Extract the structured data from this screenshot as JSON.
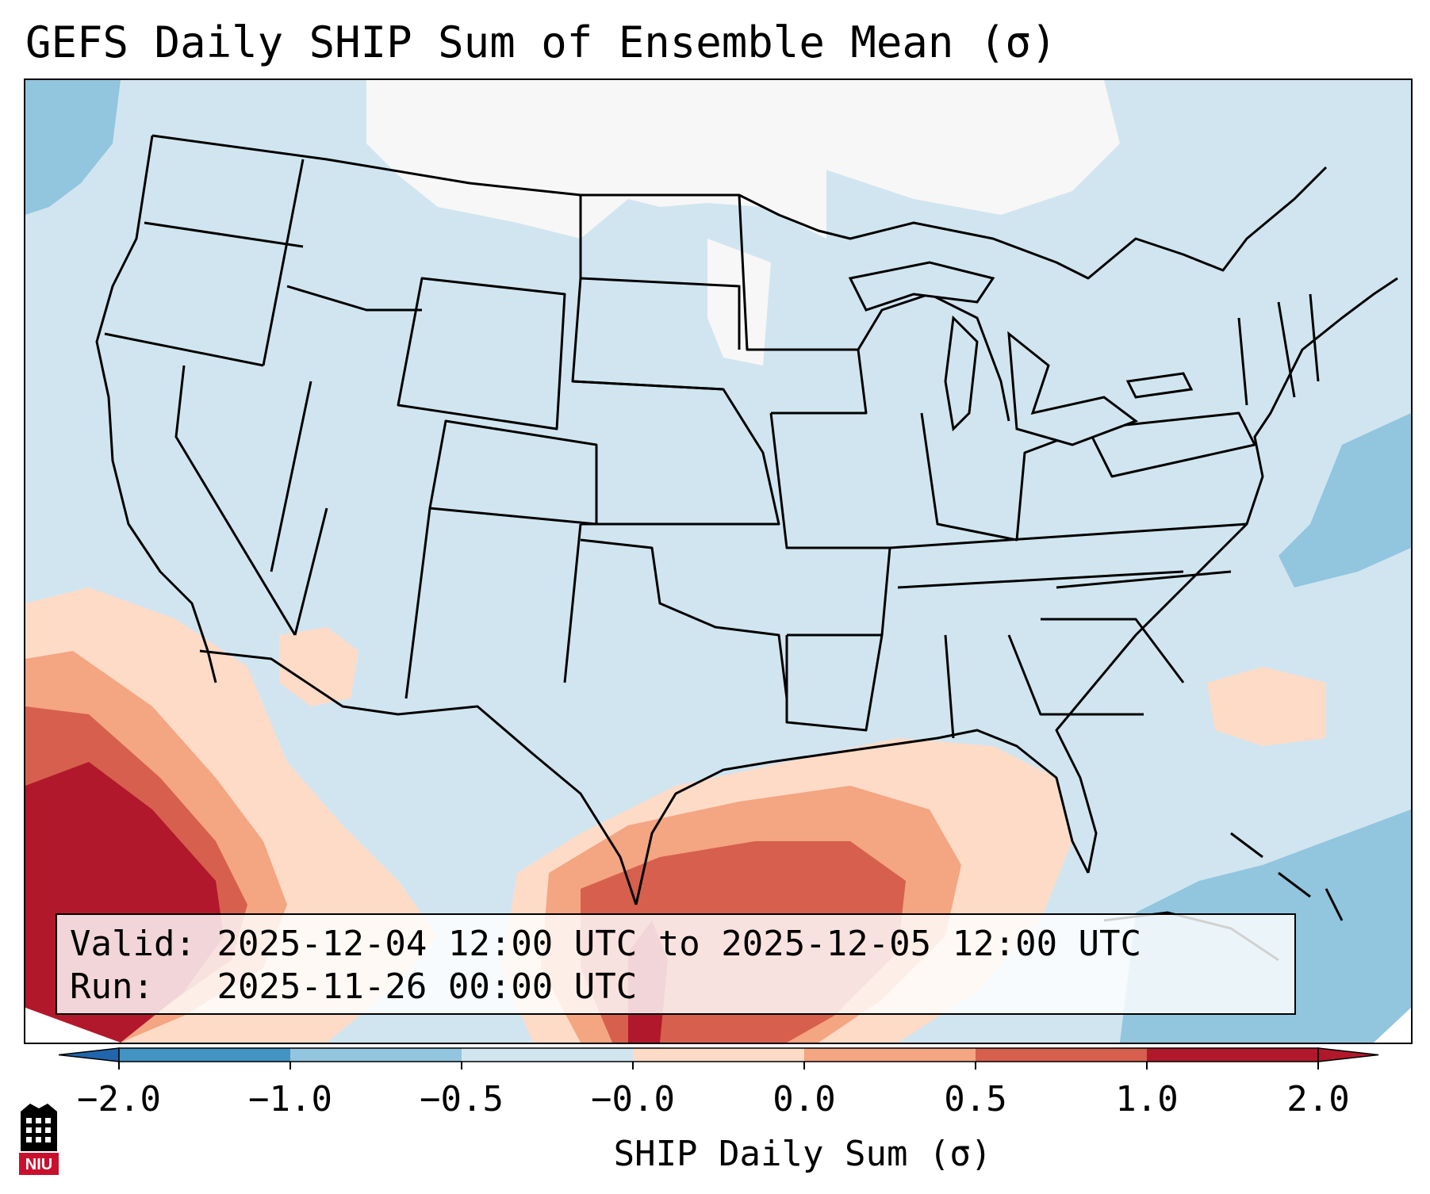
{
  "title": "GEFS Daily SHIP Sum of Ensemble Mean (σ)",
  "info": {
    "valid_label": "Valid:",
    "valid_value": "2025-12-04 12:00 UTC to 2025-12-05 12:00 UTC",
    "run_label": "Run:",
    "run_value": "2025-11-26 00:00 UTC"
  },
  "colorbar": {
    "label": "SHIP Daily Sum (σ)",
    "ticks": [
      "−2.0",
      "−1.0",
      "−0.5",
      "−0.0",
      "0.0",
      "0.5",
      "1.0",
      "2.0"
    ],
    "colors": [
      "#4393c3",
      "#92c5de",
      "#d1e5f0",
      "#f7f7f7",
      "#fddbc7",
      "#f4a582",
      "#d6604d",
      "#b2182b"
    ],
    "extend": "both"
  },
  "map": {
    "projection": "lambert-conformal",
    "region": "CONUS",
    "features": [
      "state-borders",
      "coastlines",
      "country-borders"
    ]
  },
  "logo": {
    "text": "NIU"
  }
}
